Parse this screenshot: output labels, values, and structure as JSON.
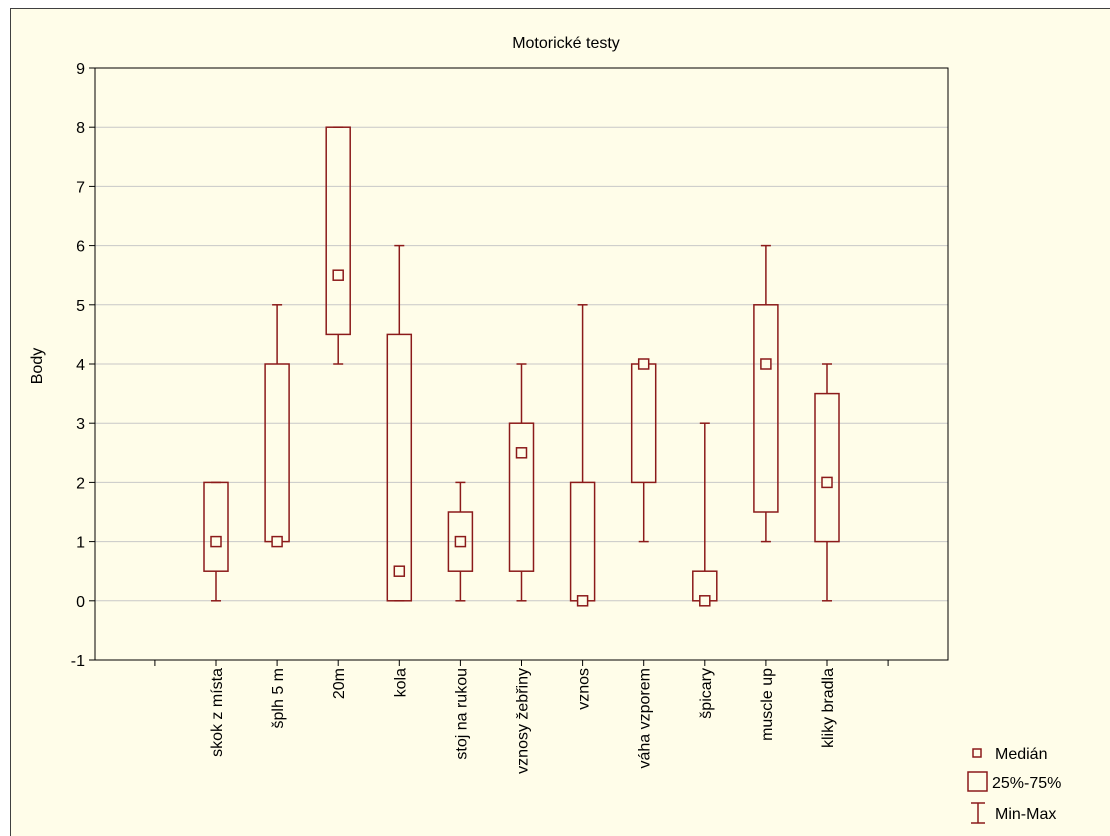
{
  "chart_data": {
    "type": "boxplot",
    "title": "Motorické testy",
    "ylabel": "Body",
    "xlabel": "",
    "ylim": [
      -1,
      9
    ],
    "yticks": [
      9,
      8,
      7,
      6,
      5,
      4,
      3,
      2,
      1,
      0,
      -1
    ],
    "grid": "horizontal",
    "legend_position": "bottom-right",
    "colors": {
      "series": "#8b1a1a",
      "grid": "#c8c8c8",
      "background": "#fffde9"
    },
    "categories": [
      "skok z místa",
      "šplh 5 m",
      "20m",
      "kola",
      "stoj na rukou",
      "vznosy žebřiny",
      "vznos",
      "váha vzporem",
      "špicary",
      "muscle up",
      "kliky bradla"
    ],
    "series": [
      {
        "name": "Medián",
        "values": [
          1,
          1,
          5.5,
          0.5,
          1,
          2.5,
          0,
          4,
          0,
          4,
          2
        ]
      },
      {
        "name": "25%-75%",
        "values": [
          [
            0.5,
            2
          ],
          [
            1,
            4
          ],
          [
            4.5,
            8
          ],
          [
            0,
            4.5
          ],
          [
            0.5,
            1.5
          ],
          [
            0.5,
            3
          ],
          [
            0,
            2
          ],
          [
            2,
            4
          ],
          [
            0,
            0.5
          ],
          [
            1.5,
            5
          ],
          [
            1,
            3.5
          ]
        ]
      },
      {
        "name": "Min-Max",
        "values": [
          [
            0,
            2
          ],
          [
            1,
            5
          ],
          [
            4,
            8
          ],
          [
            0,
            6
          ],
          [
            0,
            2
          ],
          [
            0,
            4
          ],
          [
            0,
            5
          ],
          [
            1,
            4
          ],
          [
            0,
            3
          ],
          [
            1,
            6
          ],
          [
            0,
            4
          ]
        ]
      }
    ]
  },
  "legend": {
    "median": "Medián",
    "box": "25%-75%",
    "whisker": "Min-Max"
  }
}
